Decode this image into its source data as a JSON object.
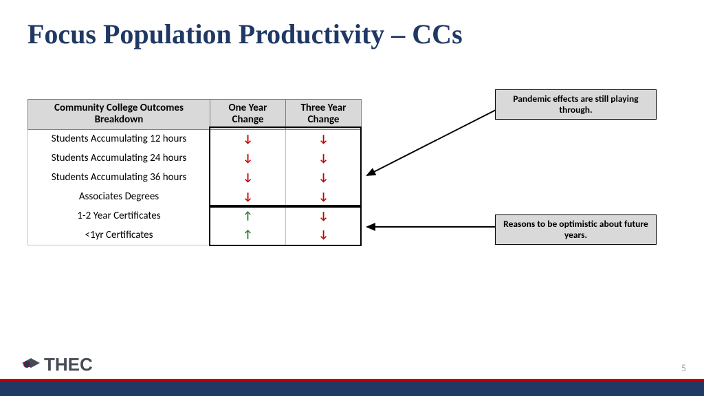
{
  "title": "Focus Population Productivity – CCs",
  "table": {
    "headers": [
      "Community College Outcomes Breakdown",
      "One Year Change",
      "Three Year Change"
    ],
    "rows": [
      {
        "label": "Students Accumulating 12 hours",
        "one": "down",
        "three": "down"
      },
      {
        "label": "Students Accumulating 24 hours",
        "one": "down",
        "three": "down"
      },
      {
        "label": "Students Accumulating 36 hours",
        "one": "down",
        "three": "down"
      },
      {
        "label": "Associates Degrees",
        "one": "down",
        "three": "down"
      },
      {
        "label": "1-2 Year Certificates",
        "one": "up",
        "three": "down"
      },
      {
        "label": "<1yr Certificates",
        "one": "up",
        "three": "down"
      }
    ]
  },
  "callouts": {
    "pandemic": "Pandemic effects are still playing through.",
    "optimistic": "Reasons to be optimistic about future years."
  },
  "arrow_glyphs": {
    "up": "↑",
    "down": "↓"
  },
  "colors": {
    "title": "#1f3864",
    "header_bg": "#d9d9d9",
    "down": "#c00000",
    "up": "#2e7d32",
    "footer": "#1f3864",
    "accent": "#c00000"
  },
  "logo_text": "THEC",
  "page_number": "5"
}
